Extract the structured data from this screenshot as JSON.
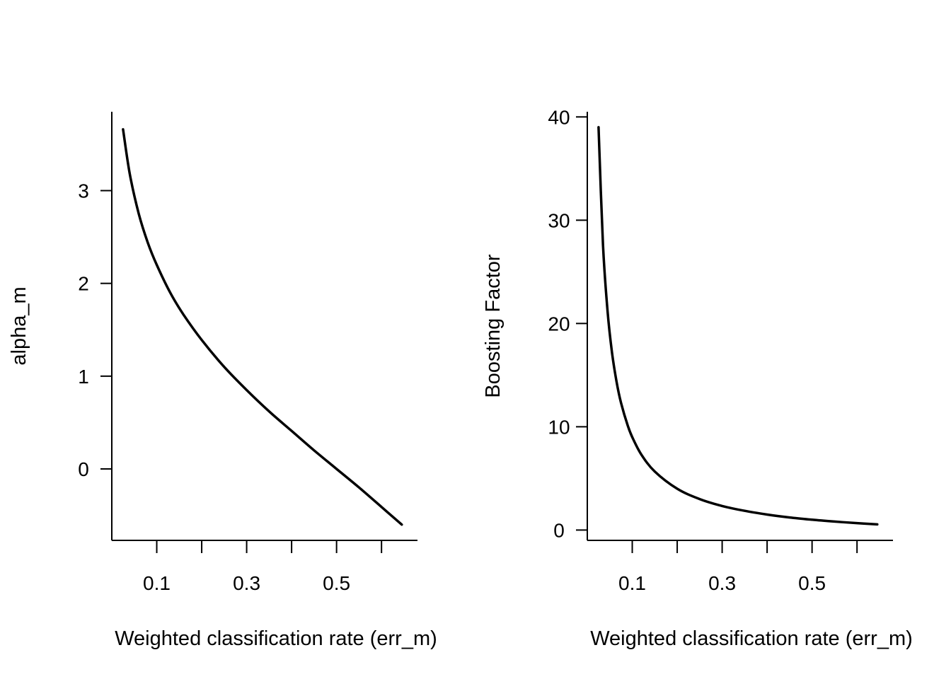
{
  "chart_data": [
    {
      "type": "line",
      "title": "",
      "xlabel": "Weighted classification rate (err_m)",
      "ylabel": "alpha_m",
      "xlim": [
        0.0,
        0.68
      ],
      "ylim": [
        -0.77,
        3.85
      ],
      "x_ticks": [
        0.1,
        0.2,
        0.3,
        0.4,
        0.5,
        0.6
      ],
      "x_tick_labels": [
        "0.1",
        "",
        "0.3",
        "",
        "0.5",
        ""
      ],
      "y_ticks": [
        0,
        1,
        2,
        3
      ],
      "y_tick_labels": [
        "0",
        "1",
        "2",
        "3"
      ],
      "grid": false,
      "series": [
        {
          "x": [
            0.025,
            0.04,
            0.06,
            0.08,
            0.1,
            0.13,
            0.16,
            0.2,
            0.25,
            0.3,
            0.35,
            0.4,
            0.45,
            0.5,
            0.55,
            0.6,
            0.645
          ],
          "y": [
            3.66,
            3.18,
            2.75,
            2.44,
            2.2,
            1.9,
            1.66,
            1.39,
            1.1,
            0.85,
            0.62,
            0.41,
            0.2,
            0.0,
            -0.2,
            -0.41,
            -0.6
          ]
        }
      ]
    },
    {
      "type": "line",
      "title": "",
      "xlabel": "Weighted classification rate (err_m)",
      "ylabel": "Boosting Factor",
      "xlim": [
        0.0,
        0.68
      ],
      "ylim": [
        -1.0,
        40.5
      ],
      "x_ticks": [
        0.1,
        0.2,
        0.3,
        0.4,
        0.5,
        0.6
      ],
      "x_tick_labels": [
        "0.1",
        "",
        "0.3",
        "",
        "0.5",
        ""
      ],
      "y_ticks": [
        0,
        10,
        20,
        30,
        40
      ],
      "y_tick_labels": [
        "0",
        "10",
        "20",
        "30",
        "40"
      ],
      "grid": false,
      "series": [
        {
          "x": [
            0.025,
            0.035,
            0.045,
            0.055,
            0.065,
            0.075,
            0.09,
            0.1,
            0.12,
            0.15,
            0.2,
            0.25,
            0.3,
            0.35,
            0.4,
            0.45,
            0.5,
            0.55,
            0.6,
            0.645
          ],
          "y": [
            39.0,
            27.57,
            21.22,
            17.18,
            14.38,
            12.33,
            10.11,
            9.0,
            7.33,
            5.67,
            4.0,
            3.0,
            2.33,
            1.86,
            1.5,
            1.22,
            1.0,
            0.82,
            0.67,
            0.55
          ]
        }
      ]
    }
  ]
}
